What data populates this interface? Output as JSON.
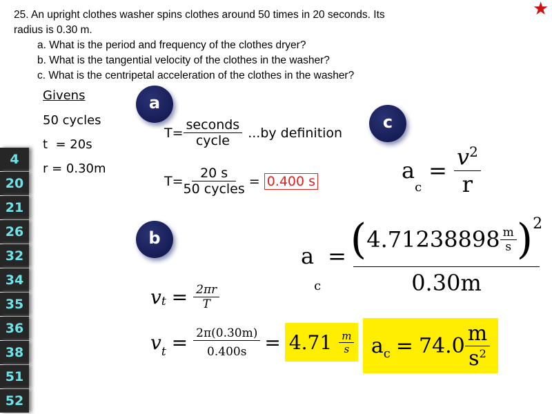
{
  "question": {
    "line1": "25.  An upright clothes washer spins clothes around 50 times in 20 seconds. Its",
    "line2": "radius is 0.30 m.",
    "a": "a. What is the period and frequency of the clothes dryer?",
    "b": "b. What is the tangential velocity of the clothes in the washer?",
    "c": "c. What is the centripetal acceleration of the clothes in the washer?"
  },
  "star_icon": "star",
  "colors": {
    "star": "#d01010",
    "sidebar_text": "#6fe3e8",
    "badge": "#1a1f5a",
    "highlight": "#ffee00",
    "answer_box": "#e02020"
  },
  "givens": {
    "title": "Givens",
    "items": [
      "50 cycles",
      "t  = 20s",
      "r = 0.30m"
    ]
  },
  "sidebar": [
    "4",
    "20",
    "21",
    "26",
    "32",
    "34",
    "35",
    "36",
    "38",
    "51",
    "52"
  ],
  "badges": {
    "a": "a",
    "b": "b",
    "c": "c"
  },
  "part_a": {
    "lhs": "T=",
    "num1": "seconds",
    "den1": "cycle",
    "note": "...by definition",
    "lhs2": "T=",
    "num2": "20 s",
    "den2": "50 cycles",
    "eq": "=",
    "answer": "0.400 s"
  },
  "part_b": {
    "lhs": "v",
    "sub": "t",
    "eq": "=",
    "num1": "2πr",
    "den1": "T",
    "num2": "2π(0.30m)",
    "den2": "0.400s",
    "answer": "4.71",
    "unit_num": "m",
    "unit_den": "s"
  },
  "part_c": {
    "lhs": "a",
    "sub": "c",
    "eq": "=",
    "num1": "v",
    "exp": "2",
    "den1": "r",
    "num2": "4.71238898",
    "unit_num": "m",
    "unit_den": "s",
    "den2": "0.30m",
    "answer": "74.0",
    "ans_unit_num": "m",
    "ans_unit_den": "s",
    "ans_exp": "2"
  }
}
